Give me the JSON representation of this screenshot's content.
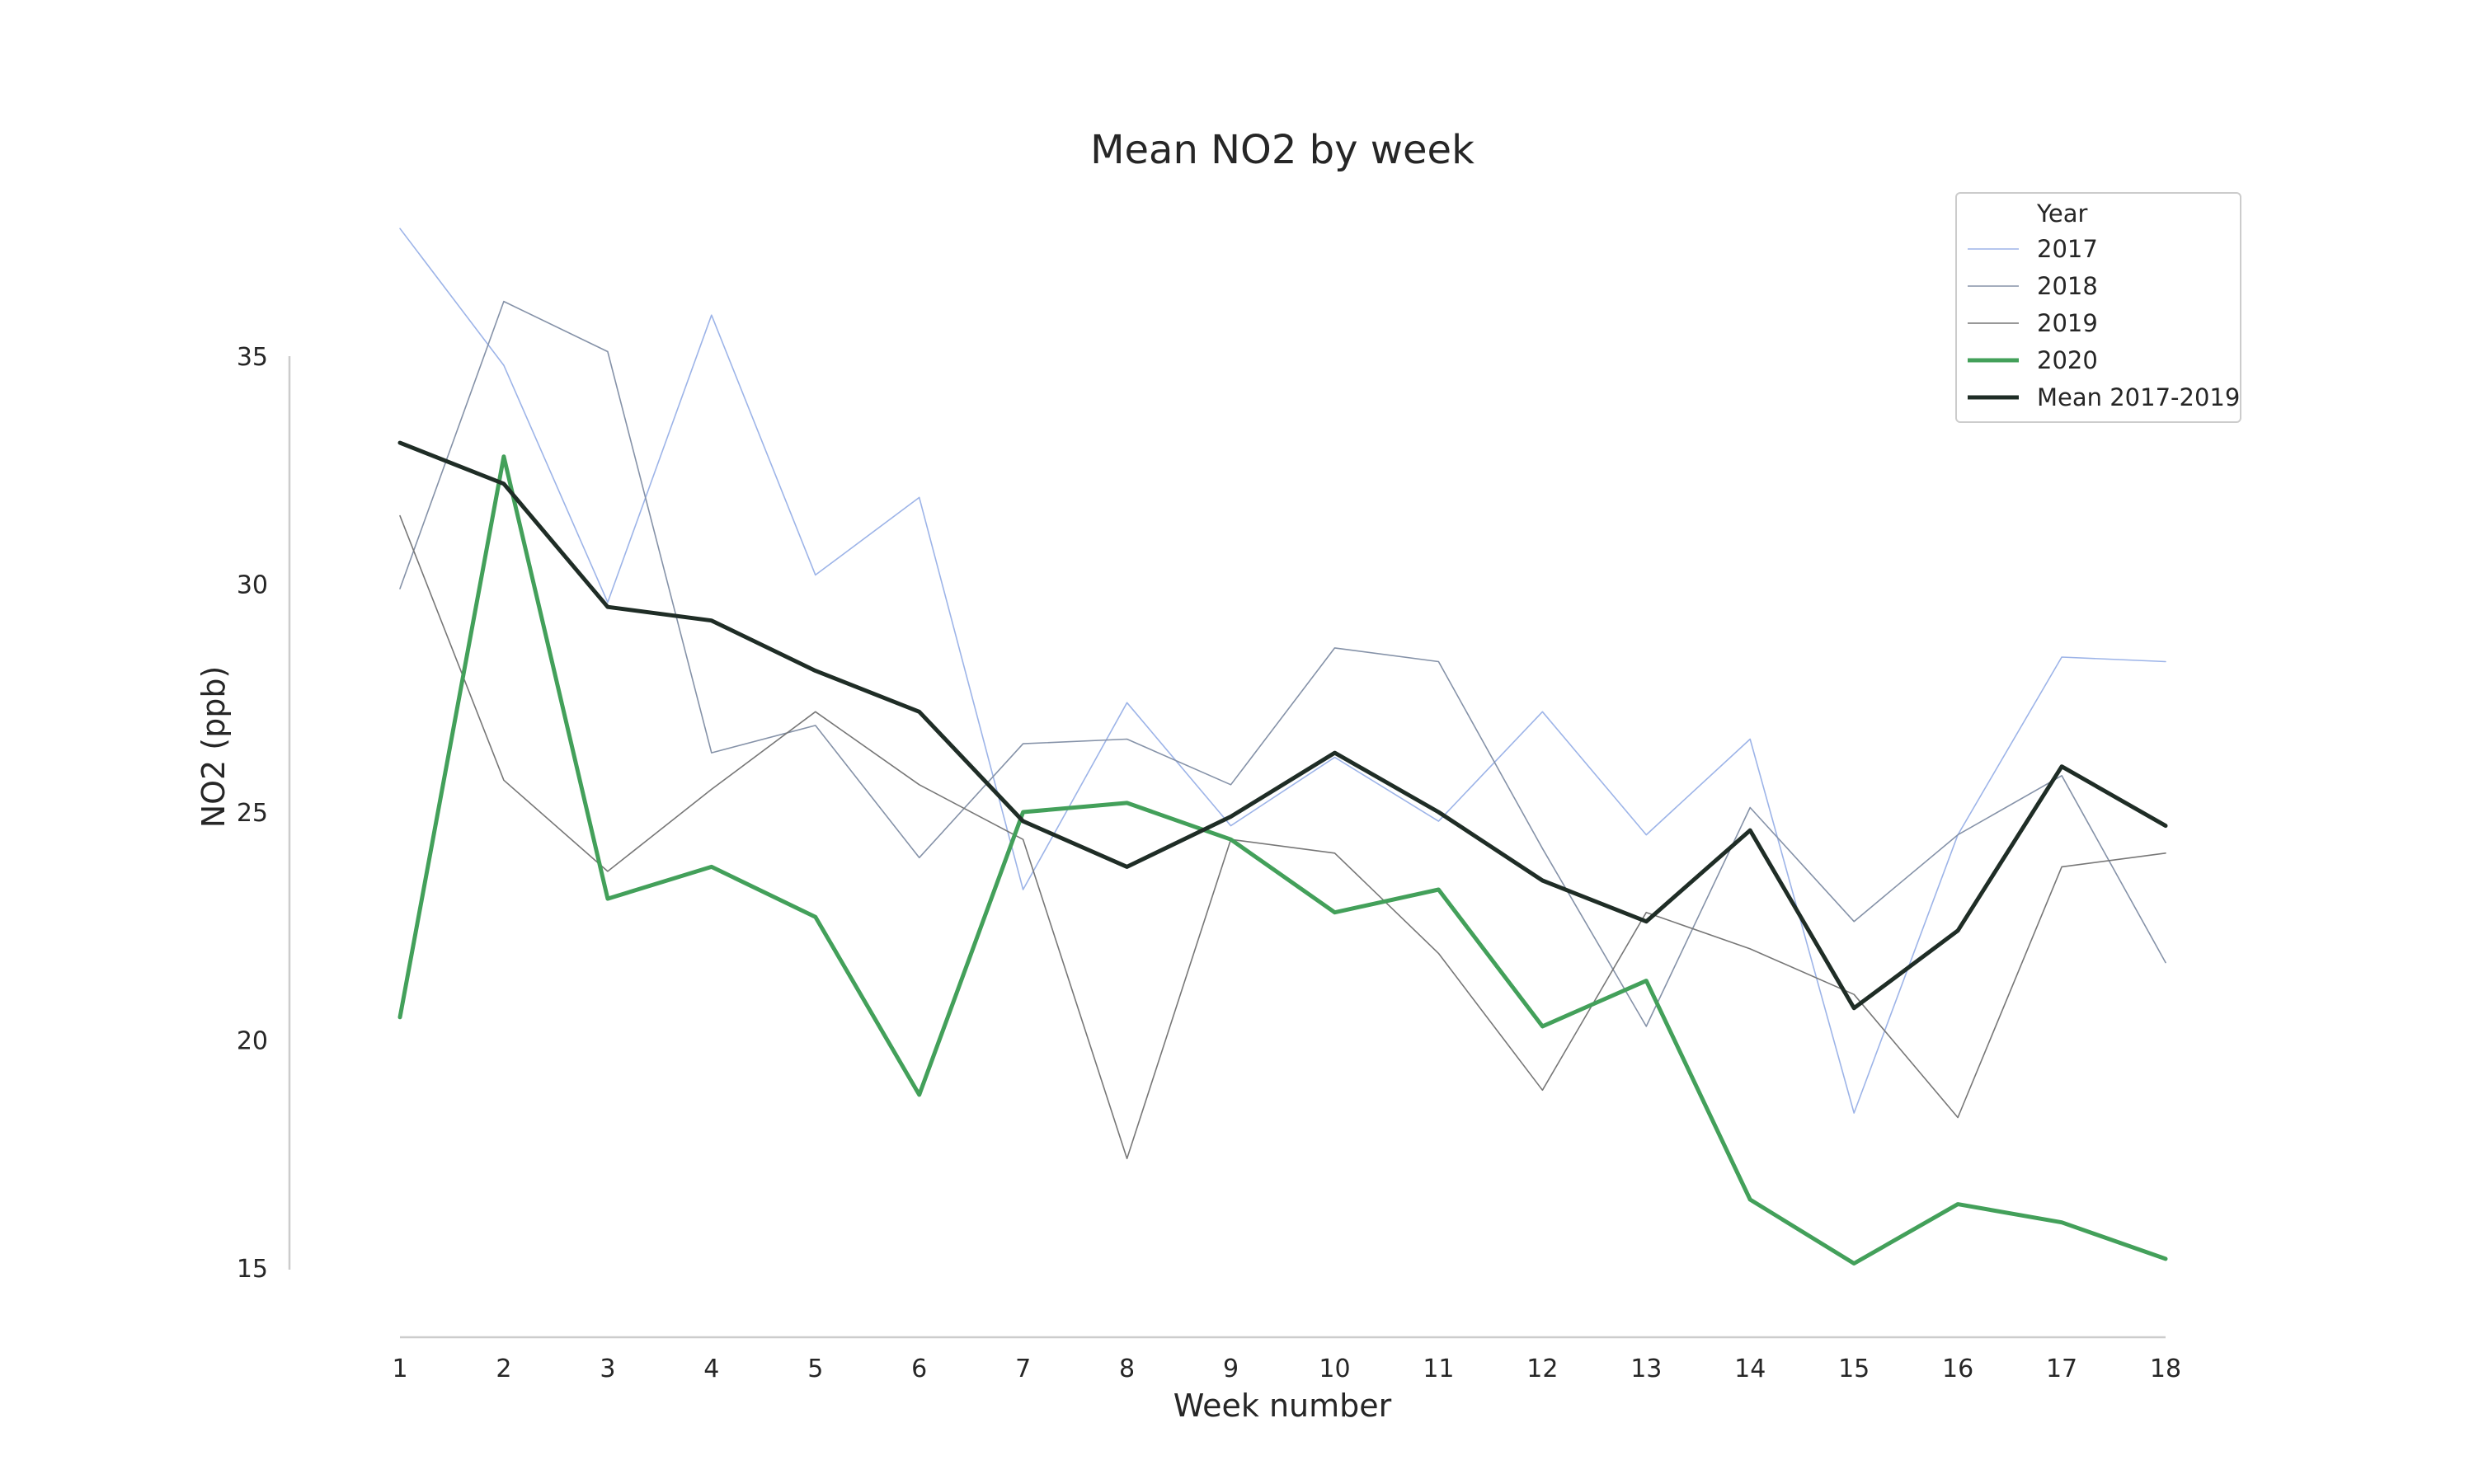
{
  "chart_data": {
    "type": "line",
    "title": "Mean NO2 by week",
    "xlabel": "Week number",
    "ylabel": "NO2 (ppb)",
    "x": [
      1,
      2,
      3,
      4,
      5,
      6,
      7,
      8,
      9,
      10,
      11,
      12,
      13,
      14,
      15,
      16,
      17,
      18
    ],
    "xticks": [
      "1",
      "2",
      "3",
      "4",
      "5",
      "6",
      "7",
      "8",
      "9",
      "10",
      "11",
      "12",
      "13",
      "14",
      "15",
      "16",
      "17",
      "18"
    ],
    "yticks": [
      15,
      20,
      25,
      30,
      35
    ],
    "xlim": [
      1,
      18
    ],
    "ylim": [
      14,
      38
    ],
    "grid": false,
    "legend": {
      "title": "Year",
      "placement": "top-right"
    },
    "series": [
      {
        "name": "2017",
        "color": "#9db4e8",
        "width": "thin",
        "values": [
          37.8,
          34.8,
          29.6,
          35.9,
          30.2,
          31.9,
          23.3,
          27.4,
          24.7,
          26.2,
          24.8,
          27.2,
          24.5,
          26.6,
          18.4,
          24.5,
          28.4,
          28.3
        ]
      },
      {
        "name": "2018",
        "color": "#8592a8",
        "width": "thin",
        "values": [
          29.9,
          36.2,
          35.1,
          26.3,
          26.9,
          24.0,
          26.5,
          26.6,
          25.6,
          28.6,
          28.3,
          24.2,
          20.3,
          25.1,
          22.6,
          24.5,
          25.8,
          21.7
        ]
      },
      {
        "name": "2019",
        "color": "#777777",
        "width": "thin",
        "values": [
          31.5,
          25.7,
          23.7,
          25.5,
          27.2,
          25.6,
          24.4,
          17.4,
          24.4,
          24.1,
          21.9,
          18.9,
          22.8,
          22.0,
          21.0,
          18.3,
          23.8,
          24.1
        ]
      },
      {
        "name": "2020",
        "color": "#43a05a",
        "width": "thick",
        "values": [
          20.5,
          32.8,
          23.1,
          23.8,
          22.7,
          18.8,
          25.0,
          25.2,
          24.4,
          22.8,
          23.3,
          20.3,
          21.3,
          16.5,
          15.1,
          16.4,
          16.0,
          15.2
        ]
      },
      {
        "name": "Mean 2017-2019",
        "color": "#1f2d26",
        "width": "thick",
        "values": [
          33.1,
          32.2,
          29.5,
          29.2,
          28.1,
          27.2,
          24.8,
          23.8,
          24.9,
          26.3,
          25.0,
          23.5,
          22.6,
          24.6,
          20.7,
          22.4,
          26.0,
          24.7
        ]
      }
    ]
  }
}
